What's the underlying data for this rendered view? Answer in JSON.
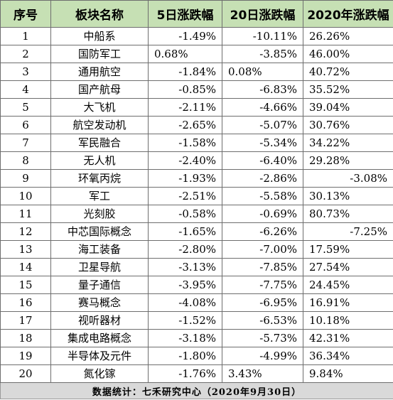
{
  "table": {
    "headers": [
      "序号",
      "板块名称",
      "5日涨跌幅",
      "20日涨跌幅",
      "2020年涨跌幅"
    ],
    "rows": [
      [
        "1",
        "中船系",
        "-1.49%",
        "-10.11%",
        "26.26%"
      ],
      [
        "2",
        "国防军工",
        "0.68%",
        "-3.85%",
        "46.00%"
      ],
      [
        "3",
        "通用航空",
        "-1.84%",
        "0.08%",
        "40.72%"
      ],
      [
        "4",
        "国产航母",
        "-0.85%",
        "-6.83%",
        "35.52%"
      ],
      [
        "5",
        "大飞机",
        "-2.11%",
        "-4.66%",
        "39.04%"
      ],
      [
        "6",
        "航空发动机",
        "-2.65%",
        "-5.07%",
        "30.76%"
      ],
      [
        "7",
        "军民融合",
        "-1.58%",
        "-5.34%",
        "34.22%"
      ],
      [
        "8",
        "无人机",
        "-2.40%",
        "-6.40%",
        "29.28%"
      ],
      [
        "9",
        "环氧丙烷",
        "-1.93%",
        "-2.86%",
        "-3.08%"
      ],
      [
        "10",
        "军工",
        "-2.51%",
        "-5.58%",
        "30.13%"
      ],
      [
        "11",
        "光刻胶",
        "-0.58%",
        "-0.69%",
        "80.73%"
      ],
      [
        "12",
        "中芯国际概念",
        "-1.65%",
        "-6.26%",
        "-7.25%"
      ],
      [
        "13",
        "海工装备",
        "-2.80%",
        "-7.00%",
        "17.59%"
      ],
      [
        "14",
        "卫星导航",
        "-3.13%",
        "-7.85%",
        "27.54%"
      ],
      [
        "15",
        "量子通信",
        "-3.95%",
        "-7.75%",
        "24.45%"
      ],
      [
        "16",
        "赛马概念",
        "-4.08%",
        "-6.95%",
        "16.91%"
      ],
      [
        "17",
        "视听器材",
        "-1.52%",
        "-6.53%",
        "10.18%"
      ],
      [
        "18",
        "集成电路概念",
        "-3.18%",
        "-5.73%",
        "42.31%"
      ],
      [
        "19",
        "半导体及元件",
        "-1.80%",
        "-4.99%",
        "36.34%"
      ],
      [
        "20",
        "氮化镓",
        "-1.76%",
        "3.43%",
        "9.84%"
      ]
    ],
    "footer": "数据统计：七禾研究中心（2020年9月30日）"
  },
  "colors": {
    "header_bg": "#c6e0b4",
    "footer_bg": "#d9d9d9",
    "border": "#6e6e6e"
  }
}
